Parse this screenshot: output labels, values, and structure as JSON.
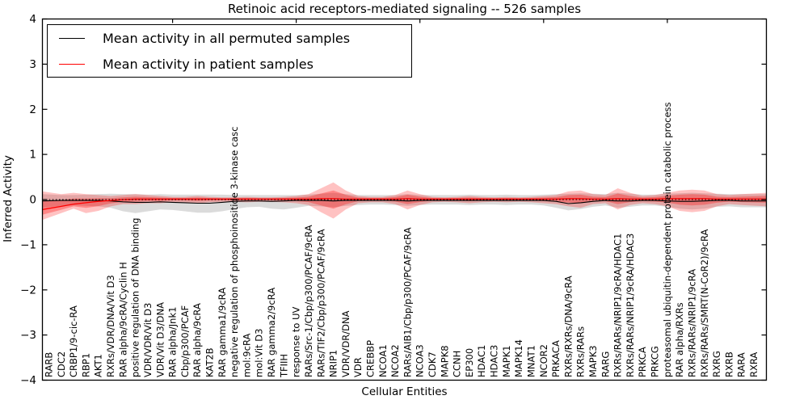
{
  "header": {
    "title": "Retinoic acid receptors-mediated signaling -- 526 samples"
  },
  "axes": {
    "xlabel": "Cellular Entities",
    "ylabel": "Inferred Activity"
  },
  "legend": {
    "items": [
      {
        "label": "Mean activity in all permuted samples",
        "color": "#000000"
      },
      {
        "label": "Mean activity in patient samples",
        "color": "#ff0000"
      }
    ]
  },
  "chart_data": {
    "type": "line",
    "title": "Retinoic acid receptors-mediated signaling -- 526 samples",
    "xlabel": "Cellular Entities",
    "ylabel": "Inferred Activity",
    "ylim": [
      -4,
      4
    ],
    "yticks": [
      4,
      3,
      2,
      1,
      0,
      -1,
      -2,
      -3,
      -4
    ],
    "grid": false,
    "legend_position": "upper left",
    "zero_line": true,
    "colors": {
      "permuted_line": "#000000",
      "patient_line": "#ff0000",
      "permuted_band": "rgba(0,0,0,0.14)",
      "patient_band": "rgba(255,0,0,0.24)"
    },
    "categories": [
      "RARB",
      "CDC2",
      "CRBP1/9-cic-RA",
      "RBP1",
      "AKT1",
      "RXRs/VDR/DNA/Vit D3",
      "RAR alpha/9cRA/Cyclin H",
      "positive regulation of DNA binding",
      "VDR/VDR/Vit D3",
      "VDR/Vit D3/DNA",
      "RAR alpha/Jnk1",
      "Cbp/p300/PCAF",
      "RAR alpha/9cRA",
      "KAT2B",
      "RAR gamma1/9cRA",
      "negative regulation of phosphoinositide 3-kinase casc",
      "mol:9cRA",
      "mol:Vit D3",
      "RAR gamma2/9cRA",
      "TFIIH",
      "response to UV",
      "RARs/Src-1/Cbp/p300/PCAF/9cRA",
      "RARs/TIF2/Cbp/p300/PCAF/9cRA",
      "NRIP1",
      "VDR/VDR/DNA",
      "VDR",
      "CREBBP",
      "NCOA1",
      "NCOA2",
      "RARs/AIB1/Cbp/p300/PCAF/9cRA",
      "NCOA3",
      "CDK7",
      "MAPK8",
      "CCNH",
      "EP300",
      "HDAC1",
      "HDAC3",
      "MAPK1",
      "MAPK14",
      "MNAT1",
      "NCOR2",
      "PRKACA",
      "RXRs/RXRs/DNA/9cRA",
      "RXRs/RARs",
      "MAPK3",
      "RARG",
      "RXRs/RARs/NRIP1/9cRA/HDAC1",
      "RXRs/RARs/NRIP1/9cRA/HDAC3",
      "PRKCA",
      "PRKCG",
      "proteasomal ubiquitin-dependent protein catabolic process",
      "RAR alpha/RXRs",
      "RXRs/RARs/NRIP1/9cRA",
      "RXRs/RARs/SMRT(N-CoR2)/9cRA",
      "RXRG",
      "RXRB",
      "RARA",
      "RXRA"
    ],
    "series": [
      {
        "name": "Mean activity in all permuted samples",
        "values": [
          -0.03,
          -0.02,
          -0.02,
          -0.02,
          -0.02,
          -0.03,
          -0.05,
          -0.06,
          -0.06,
          -0.05,
          -0.06,
          -0.07,
          -0.08,
          -0.08,
          -0.06,
          -0.04,
          -0.03,
          -0.03,
          -0.04,
          -0.03,
          -0.02,
          -0.02,
          -0.02,
          -0.03,
          -0.02,
          -0.02,
          -0.02,
          -0.02,
          -0.02,
          -0.03,
          -0.02,
          -0.02,
          -0.02,
          -0.02,
          -0.02,
          -0.02,
          -0.02,
          -0.02,
          -0.02,
          -0.02,
          -0.02,
          -0.04,
          -0.09,
          -0.07,
          -0.04,
          -0.02,
          -0.03,
          -0.03,
          -0.02,
          -0.02,
          -0.03,
          -0.04,
          -0.04,
          -0.03,
          -0.02,
          -0.02,
          -0.03,
          -0.03
        ],
        "band_upper": [
          0.12,
          0.1,
          0.1,
          0.11,
          0.12,
          0.13,
          0.12,
          0.12,
          0.11,
          0.12,
          0.11,
          0.11,
          0.11,
          0.11,
          0.11,
          0.1,
          0.1,
          0.1,
          0.1,
          0.1,
          0.1,
          0.11,
          0.13,
          0.15,
          0.12,
          0.1,
          0.1,
          0.1,
          0.1,
          0.12,
          0.1,
          0.1,
          0.1,
          0.1,
          0.11,
          0.1,
          0.1,
          0.11,
          0.1,
          0.1,
          0.11,
          0.12,
          0.13,
          0.14,
          0.13,
          0.12,
          0.15,
          0.13,
          0.11,
          0.11,
          0.13,
          0.14,
          0.15,
          0.14,
          0.13,
          0.12,
          0.12,
          0.12
        ],
        "band_lower": [
          -0.18,
          -0.14,
          -0.13,
          -0.14,
          -0.15,
          -0.18,
          -0.26,
          -0.3,
          -0.26,
          -0.22,
          -0.23,
          -0.26,
          -0.29,
          -0.29,
          -0.26,
          -0.21,
          -0.17,
          -0.16,
          -0.2,
          -0.22,
          -0.18,
          -0.14,
          -0.15,
          -0.17,
          -0.14,
          -0.12,
          -0.11,
          -0.11,
          -0.12,
          -0.14,
          -0.12,
          -0.11,
          -0.11,
          -0.11,
          -0.12,
          -0.11,
          -0.11,
          -0.12,
          -0.11,
          -0.11,
          -0.13,
          -0.18,
          -0.24,
          -0.21,
          -0.16,
          -0.13,
          -0.18,
          -0.16,
          -0.13,
          -0.13,
          -0.16,
          -0.2,
          -0.22,
          -0.2,
          -0.16,
          -0.15,
          -0.17,
          -0.17
        ]
      },
      {
        "name": "Mean activity in patient samples",
        "values": [
          -0.22,
          -0.15,
          -0.1,
          -0.07,
          -0.04,
          -0.02,
          0.0,
          0.01,
          0.01,
          0.01,
          0.01,
          0.01,
          0.01,
          0.01,
          0.01,
          0.01,
          0.01,
          0.01,
          0.01,
          0.01,
          0.01,
          0.01,
          0.02,
          0.02,
          0.01,
          0.01,
          0.01,
          0.01,
          0.01,
          0.02,
          0.01,
          0.01,
          0.01,
          0.01,
          0.01,
          0.01,
          0.01,
          0.01,
          0.01,
          0.01,
          0.01,
          0.01,
          0.02,
          0.02,
          0.01,
          0.01,
          0.02,
          0.01,
          0.01,
          0.01,
          0.02,
          0.02,
          0.02,
          0.02,
          0.01,
          0.01,
          0.01,
          0.01
        ],
        "band_upper": [
          0.18,
          0.12,
          0.15,
          0.12,
          0.1,
          0.08,
          0.1,
          0.12,
          0.1,
          0.08,
          0.06,
          0.06,
          0.08,
          0.06,
          0.05,
          0.05,
          0.06,
          0.05,
          0.05,
          0.06,
          0.08,
          0.12,
          0.25,
          0.38,
          0.2,
          0.08,
          0.06,
          0.06,
          0.1,
          0.2,
          0.12,
          0.06,
          0.05,
          0.06,
          0.08,
          0.06,
          0.05,
          0.06,
          0.05,
          0.06,
          0.08,
          0.1,
          0.18,
          0.2,
          0.12,
          0.1,
          0.25,
          0.15,
          0.08,
          0.1,
          0.15,
          0.2,
          0.22,
          0.2,
          0.12,
          0.1,
          0.12,
          0.15
        ],
        "band_lower": [
          -0.45,
          -0.3,
          -0.2,
          -0.3,
          -0.25,
          -0.15,
          -0.1,
          -0.1,
          -0.08,
          -0.08,
          -0.06,
          -0.06,
          -0.08,
          -0.06,
          -0.05,
          -0.05,
          -0.06,
          -0.05,
          -0.05,
          -0.06,
          -0.08,
          -0.12,
          -0.28,
          -0.42,
          -0.22,
          -0.08,
          -0.06,
          -0.06,
          -0.1,
          -0.22,
          -0.12,
          -0.06,
          -0.05,
          -0.06,
          -0.08,
          -0.06,
          -0.05,
          -0.06,
          -0.05,
          -0.06,
          -0.08,
          -0.1,
          -0.15,
          -0.18,
          -0.1,
          -0.08,
          -0.22,
          -0.12,
          -0.08,
          -0.1,
          -0.15,
          -0.25,
          -0.28,
          -0.25,
          -0.15,
          -0.1,
          -0.12,
          -0.15
        ]
      }
    ]
  }
}
